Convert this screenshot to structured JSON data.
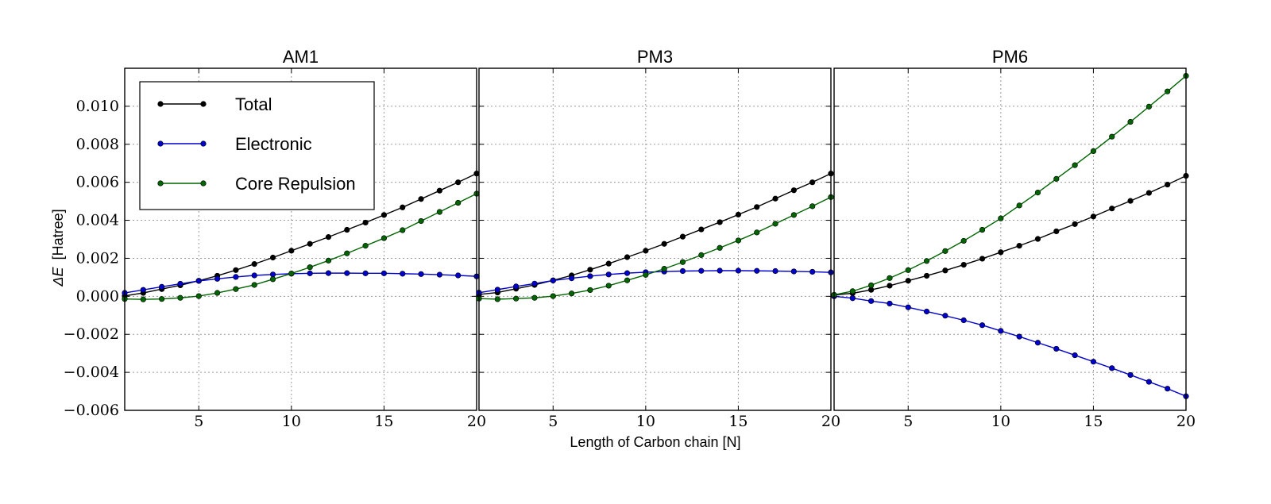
{
  "chart_data": {
    "type": "line",
    "xlabel": "Length of Carbon chain [N]",
    "ylabel": "[Hatree]",
    "ylabel_math": "ΔE",
    "xlim": [
      1,
      20
    ],
    "ylim": [
      -0.006,
      0.012
    ],
    "xticks": [
      5,
      10,
      15,
      20
    ],
    "yticks": [
      -0.006,
      -0.004,
      -0.002,
      0.0,
      0.002,
      0.004,
      0.006,
      0.008,
      0.01
    ],
    "ytick_labels": [
      "−0.006",
      "−0.004",
      "−0.002",
      "0.000",
      "0.002",
      "0.004",
      "0.006",
      "0.008",
      "0.010"
    ],
    "grid": true,
    "legend_location": "upper-left of first panel",
    "x": [
      1,
      2,
      3,
      4,
      5,
      6,
      7,
      8,
      9,
      10,
      11,
      12,
      13,
      14,
      15,
      16,
      17,
      18,
      19,
      20
    ],
    "series_styles": [
      {
        "key": "total",
        "name": "Total",
        "color": "#000000"
      },
      {
        "key": "electronic",
        "name": "Electronic",
        "color": "#0000cc"
      },
      {
        "key": "core",
        "name": "Core Repulsion",
        "color": "#006400"
      }
    ],
    "panels": [
      {
        "title": "AM1",
        "series": {
          "total": [
            2e-05,
            0.00018,
            0.00038,
            0.00058,
            0.00082,
            0.00108,
            0.00138,
            0.0017,
            0.00204,
            0.0024,
            0.00276,
            0.00312,
            0.0035,
            0.00388,
            0.00428,
            0.00468,
            0.00512,
            0.00556,
            0.006,
            0.00646
          ],
          "electronic": [
            0.00018,
            0.00034,
            0.0005,
            0.00066,
            0.00081,
            0.00092,
            0.00102,
            0.0011,
            0.00115,
            0.00119,
            0.00121,
            0.00122,
            0.00122,
            0.00121,
            0.00121,
            0.00119,
            0.00117,
            0.00114,
            0.0011,
            0.00105
          ],
          "core": [
            -0.00014,
            -0.00016,
            -0.00014,
            -8e-05,
            1e-05,
            0.00018,
            0.00038,
            0.0006,
            0.0009,
            0.0012,
            0.00153,
            0.00188,
            0.00226,
            0.00266,
            0.00306,
            0.00348,
            0.00396,
            0.00444,
            0.00492,
            0.0054
          ]
        }
      },
      {
        "title": "PM3",
        "series": {
          "total": [
            0.0001,
            0.0002,
            0.0004,
            0.0006,
            0.00084,
            0.0011,
            0.0014,
            0.00172,
            0.00206,
            0.0024,
            0.00276,
            0.00314,
            0.00352,
            0.0039,
            0.0043,
            0.0047,
            0.00514,
            0.00558,
            0.006,
            0.00646
          ],
          "electronic": [
            0.00019,
            0.00035,
            0.00052,
            0.00067,
            0.00083,
            0.00095,
            0.00106,
            0.00115,
            0.00122,
            0.00127,
            0.0013,
            0.00133,
            0.00134,
            0.00135,
            0.00135,
            0.00134,
            0.00133,
            0.00131,
            0.00129,
            0.00126
          ],
          "core": [
            -0.00012,
            -0.00015,
            -0.00012,
            -8e-05,
            1e-05,
            0.00015,
            0.00033,
            0.00056,
            0.00084,
            0.00113,
            0.00145,
            0.0018,
            0.00217,
            0.00255,
            0.00294,
            0.00336,
            0.00382,
            0.00428,
            0.00474,
            0.00522
          ]
        }
      },
      {
        "title": "PM6",
        "series": {
          "total": [
            7e-05,
            0.00016,
            0.00034,
            0.00056,
            0.00082,
            0.00108,
            0.00136,
            0.00166,
            0.00198,
            0.00232,
            0.00266,
            0.00302,
            0.00342,
            0.0038,
            0.0042,
            0.00462,
            0.00502,
            0.00544,
            0.00588,
            0.00634
          ],
          "electronic": [
            0.0,
            -0.0001,
            -0.00025,
            -0.00038,
            -0.00058,
            -0.0008,
            -0.00102,
            -0.00126,
            -0.00152,
            -0.00182,
            -0.00212,
            -0.00244,
            -0.00276,
            -0.0031,
            -0.00344,
            -0.00378,
            -0.00414,
            -0.0045,
            -0.00486,
            -0.00526
          ],
          "core": [
            8e-05,
            0.00027,
            0.00058,
            0.00096,
            0.00138,
            0.00186,
            0.00238,
            0.00292,
            0.0035,
            0.0041,
            0.00478,
            0.00546,
            0.00618,
            0.0069,
            0.00764,
            0.0084,
            0.00918,
            0.00998,
            0.01078,
            0.0116
          ]
        }
      }
    ]
  }
}
